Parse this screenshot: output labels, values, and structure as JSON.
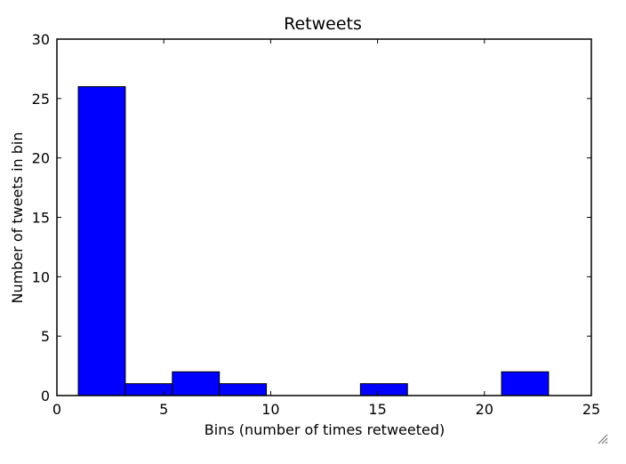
{
  "chart_data": {
    "type": "bar",
    "title": "Retweets",
    "xlabel": "Bins (number of times retweeted)",
    "ylabel": "Number of tweets in bin",
    "xlim": [
      0,
      25
    ],
    "ylim": [
      0,
      30
    ],
    "xticks": [
      0,
      5,
      10,
      15,
      20,
      25
    ],
    "yticks": [
      0,
      5,
      10,
      15,
      20,
      25,
      30
    ],
    "grid": false,
    "bar_color": "#0000ff",
    "bins": [
      {
        "x0": 1.0,
        "x1": 3.2,
        "value": 26
      },
      {
        "x0": 3.2,
        "x1": 5.4,
        "value": 1
      },
      {
        "x0": 5.4,
        "x1": 7.6,
        "value": 2
      },
      {
        "x0": 7.6,
        "x1": 9.8,
        "value": 1
      },
      {
        "x0": 9.8,
        "x1": 12.0,
        "value": 0
      },
      {
        "x0": 12.0,
        "x1": 14.2,
        "value": 0
      },
      {
        "x0": 14.2,
        "x1": 16.4,
        "value": 1
      },
      {
        "x0": 16.4,
        "x1": 18.6,
        "value": 0
      },
      {
        "x0": 18.6,
        "x1": 20.8,
        "value": 0
      },
      {
        "x0": 20.8,
        "x1": 23.0,
        "value": 2
      }
    ]
  },
  "window": {
    "resize_grip_icon": "resize-grip-icon"
  }
}
